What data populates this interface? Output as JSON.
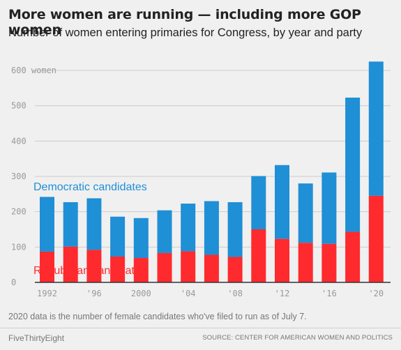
{
  "header": {
    "title": "More women are running — including more GOP women",
    "subtitle": "Number of women entering primaries for Congress, by year and party"
  },
  "colors": {
    "democratic": "#1f8fd6",
    "republican": "#ff2a2e",
    "grid": "#cccccc",
    "axis": "#333333",
    "background": "#f0f0f0"
  },
  "chart_data": {
    "type": "bar",
    "stacked": true,
    "categories": [
      "1992",
      "1994",
      "1996",
      "1998",
      "2000",
      "2002",
      "2004",
      "2006",
      "2008",
      "2010",
      "2012",
      "2014",
      "2016",
      "2018",
      "2020"
    ],
    "x_tick_labels": [
      "1992",
      "",
      "'96",
      "",
      "2000",
      "",
      "'04",
      "",
      "'08",
      "",
      "'12",
      "",
      "'16",
      "",
      "'20"
    ],
    "series": [
      {
        "name": "Republican candidates",
        "values": [
          87,
          101,
          92,
          73,
          69,
          83,
          88,
          78,
          72,
          150,
          123,
          112,
          109,
          143,
          245
        ]
      },
      {
        "name": "Democratic candidates",
        "values": [
          155,
          126,
          146,
          113,
          113,
          121,
          135,
          152,
          155,
          151,
          209,
          168,
          202,
          380,
          380
        ]
      }
    ],
    "y_ticks": [
      0,
      100,
      200,
      300,
      400,
      500,
      600
    ],
    "y_tick_unit_label": "women",
    "ylim": [
      0,
      640
    ],
    "grid": true
  },
  "footnote": "2020 data is the number of female candidates who've filed to run as of July 7.",
  "footer": {
    "brand": "FiveThirtyEight",
    "source": "SOURCE: CENTER FOR AMERICAN WOMEN AND POLITICS"
  }
}
